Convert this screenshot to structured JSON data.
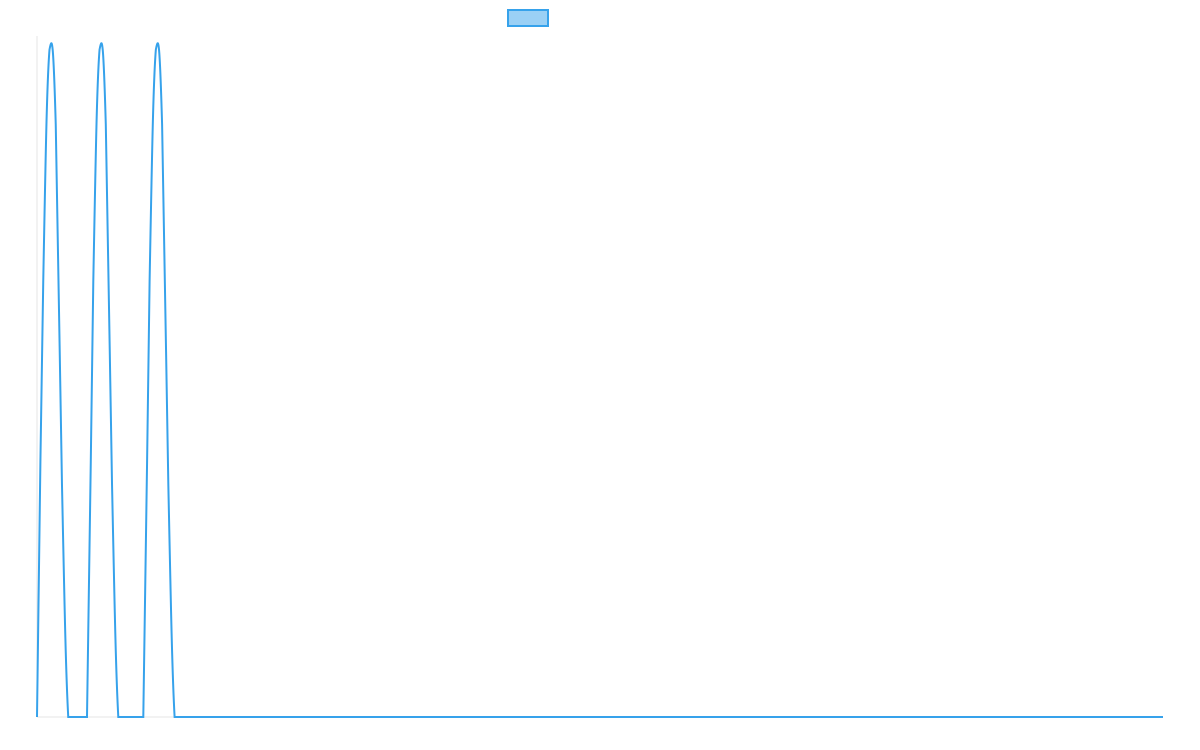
{
  "chart_data": {
    "type": "line",
    "title": "",
    "xlabel": "",
    "ylabel": "",
    "grid": false,
    "legend_position": "top-center",
    "series": [
      {
        "name": "",
        "color": "#36a2eb",
        "fill_color": "#9ad0f5",
        "x": [
          0,
          0.111,
          0.222,
          0.333,
          0.444,
          0.555,
          0.666,
          0.777,
          0.888,
          1.0,
          1.111,
          1.222,
          1.333,
          1.444,
          1.555,
          1.666,
          1.777,
          1.888,
          2.0,
          2.111,
          2.222,
          2.333,
          2.444,
          2.555,
          2.666,
          2.777,
          2.888,
          3.0,
          4.0,
          5.0,
          6.0,
          7.0,
          8.0,
          9.0,
          10.0,
          11.0,
          12.0,
          13.0,
          14.0,
          15.0,
          16.0,
          17.0,
          18.0,
          19.0,
          20.0
        ],
        "values": [
          0,
          0.64,
          0.98,
          0.87,
          0.34,
          0,
          0,
          0,
          0,
          0.64,
          0.98,
          0.87,
          0.34,
          0,
          0,
          0,
          0,
          0,
          0.64,
          0.98,
          0.87,
          0.34,
          0,
          0,
          0,
          0,
          0,
          0,
          0,
          0,
          0,
          0,
          0,
          0,
          0,
          0,
          0,
          0,
          0,
          0,
          0,
          0,
          0,
          0,
          0
        ]
      }
    ],
    "xlim": [
      0,
      20
    ],
    "ylim": [
      0,
      1
    ]
  }
}
